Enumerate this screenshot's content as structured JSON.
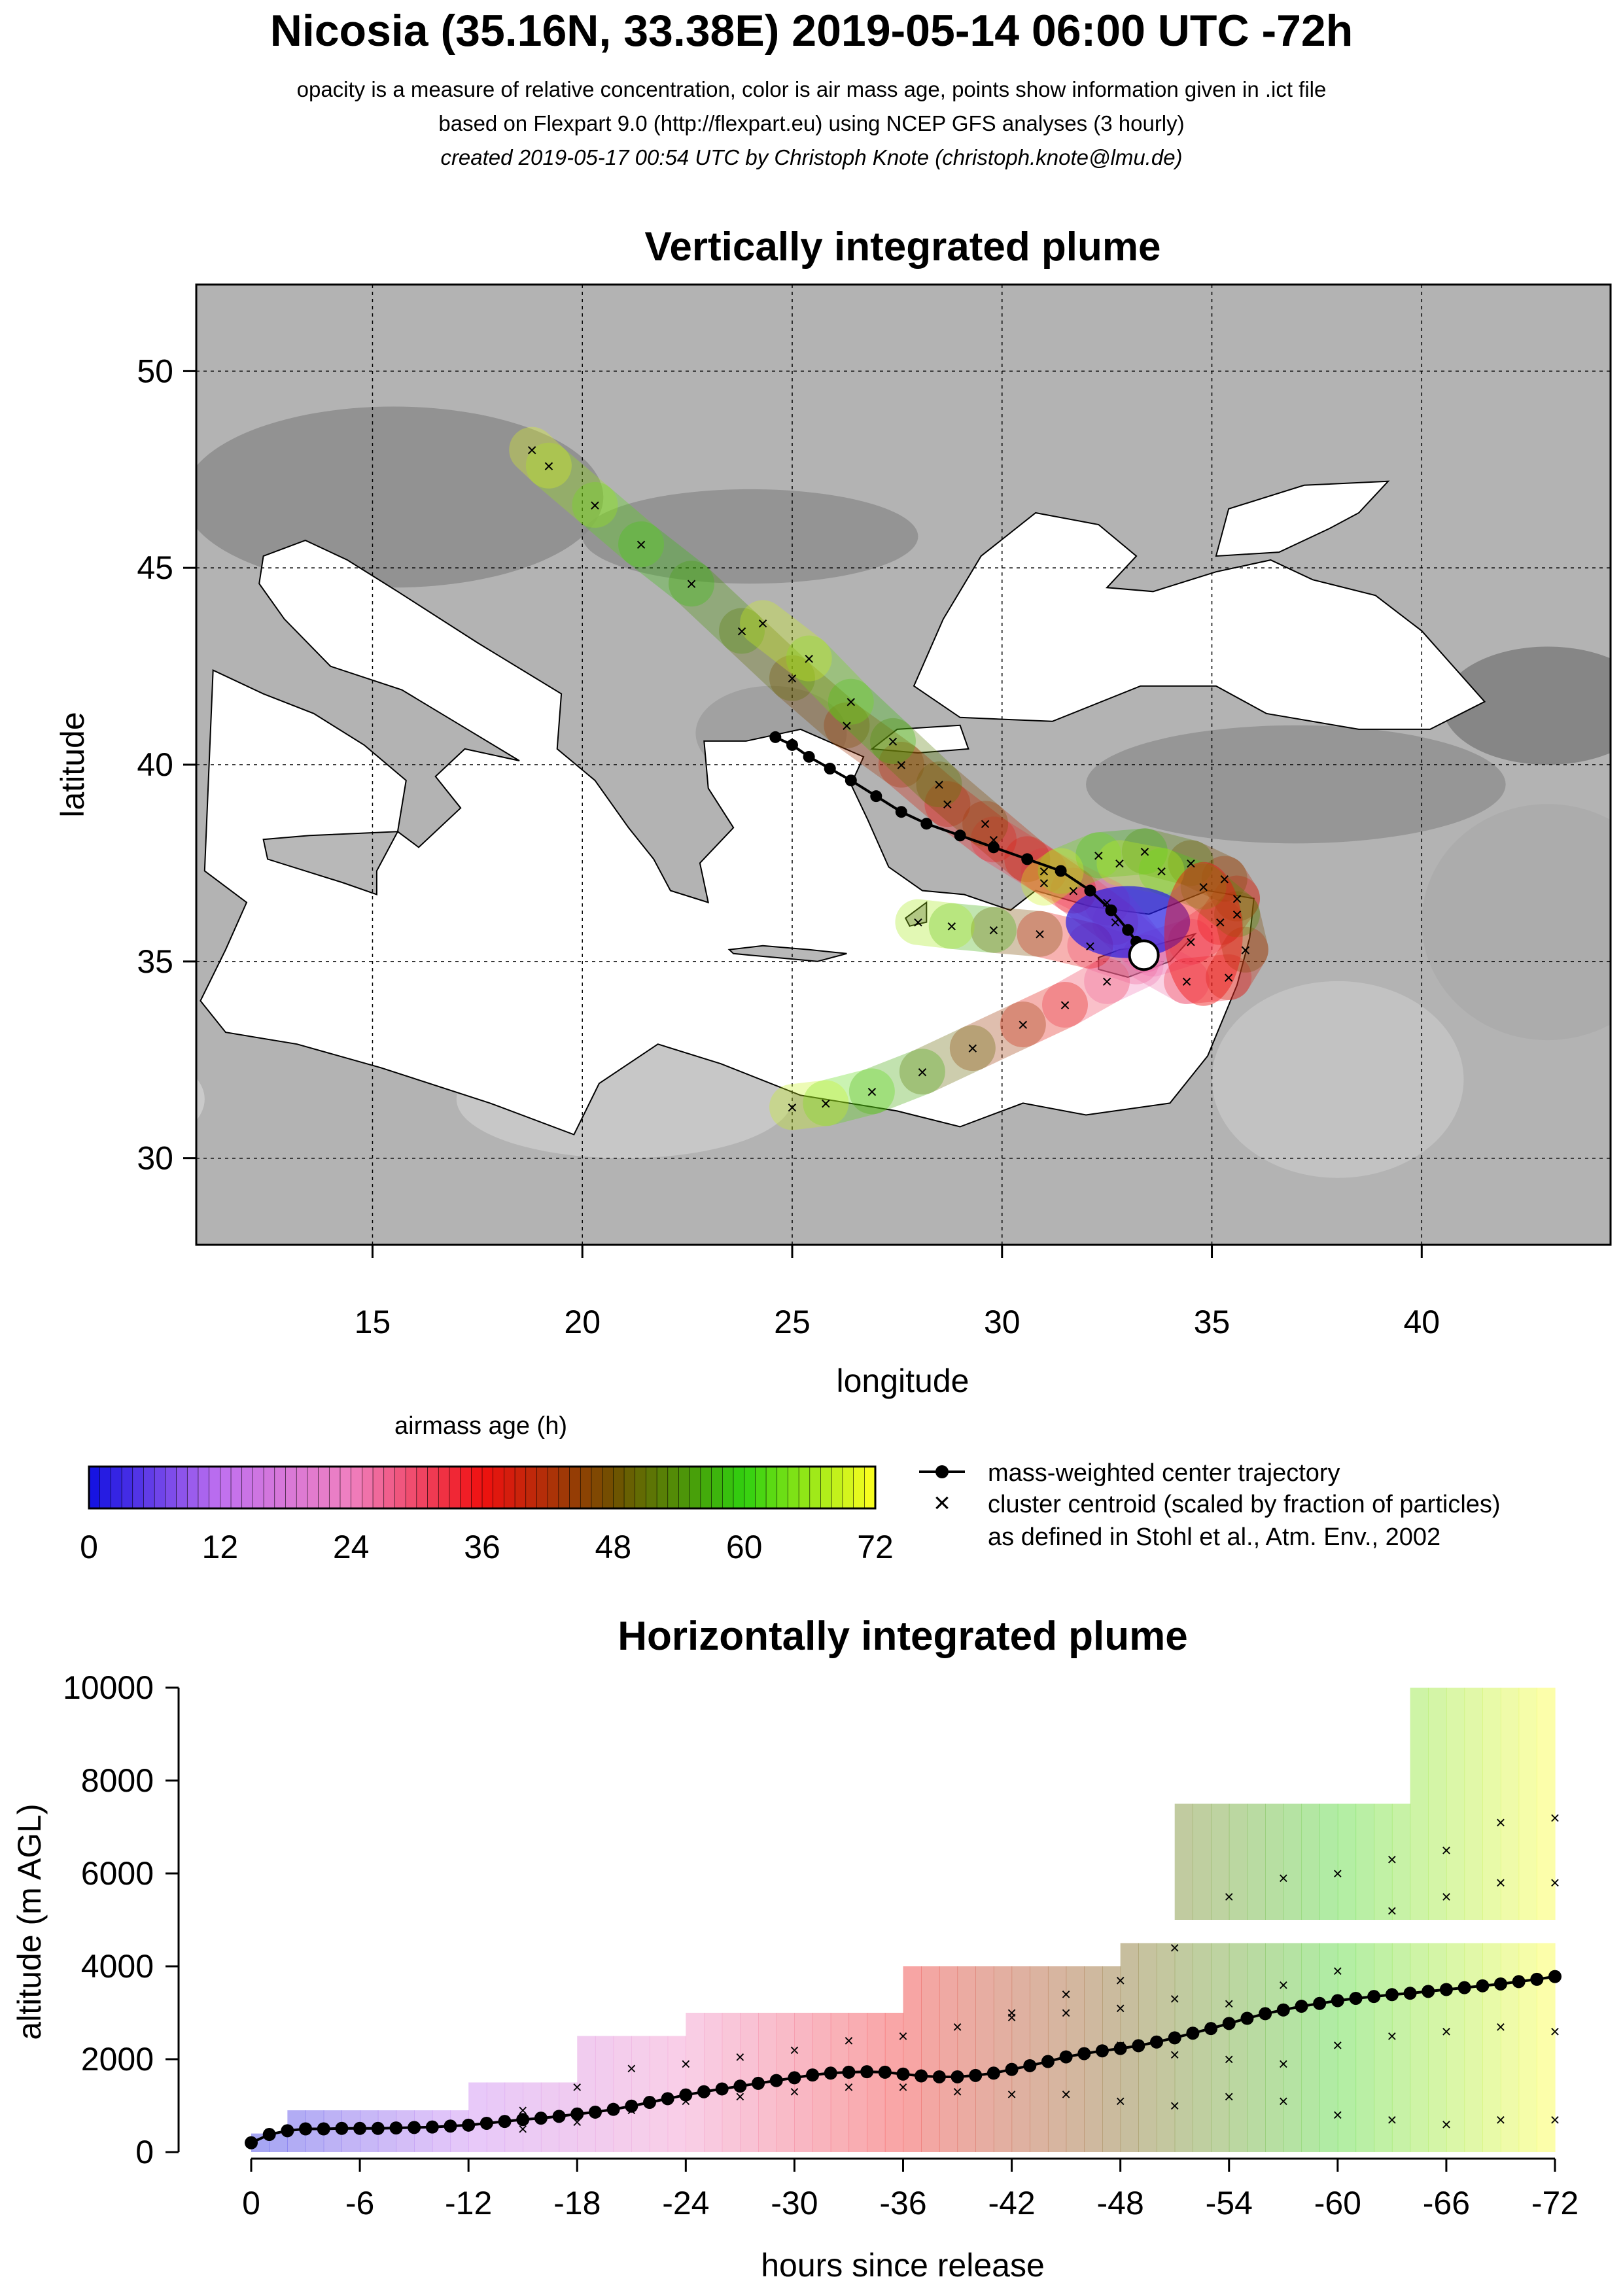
{
  "header": {
    "title": "Nicosia (35.16N, 33.38E) 2019-05-14 06:00 UTC -72h",
    "line1": "opacity is a measure of relative concentration, color is air mass age, points show information given in .ict file",
    "line2": "based on Flexpart 9.0 (http://flexpart.eu) using NCEP GFS analyses (3 hourly)",
    "line3": "created 2019-05-17 00:54 UTC by Christoph Knote (christoph.knote@lmu.de)"
  },
  "colorbar": {
    "title": "airmass age (h)",
    "ticks": [
      "0",
      "12",
      "24",
      "36",
      "48",
      "60",
      "72"
    ],
    "stops": [
      "#1010e0",
      "#c070f0",
      "#f080c0",
      "#f01010",
      "#705000",
      "#30d010",
      "#ffff20"
    ]
  },
  "legend": {
    "center": "mass-weighted center trajectory",
    "cluster": "cluster centroid (scaled by fraction of particles)",
    "cluster_note": "as defined in Stohl et al., Atm. Env., 2002"
  },
  "chart_data": [
    {
      "type": "scatter",
      "title": "Vertically integrated plume",
      "xlabel": "longitude",
      "ylabel": "latitude",
      "xlim": [
        10.8,
        44.5
      ],
      "ylim": [
        27.8,
        52.2
      ],
      "xticks": [
        15,
        20,
        25,
        30,
        35,
        40
      ],
      "yticks": [
        30,
        35,
        40,
        45,
        50
      ],
      "grid": true,
      "release_point": {
        "lon": 33.38,
        "lat": 35.16
      },
      "center_trajectory": [
        [
          33.38,
          35.16
        ],
        [
          33.2,
          35.5
        ],
        [
          33.0,
          35.8
        ],
        [
          32.6,
          36.3
        ],
        [
          32.1,
          36.8
        ],
        [
          31.4,
          37.3
        ],
        [
          30.6,
          37.6
        ],
        [
          29.8,
          37.9
        ],
        [
          29.0,
          38.2
        ],
        [
          28.2,
          38.5
        ],
        [
          27.6,
          38.8
        ],
        [
          27.0,
          39.2
        ],
        [
          26.4,
          39.6
        ],
        [
          25.9,
          39.9
        ],
        [
          25.4,
          40.2
        ],
        [
          25.0,
          40.5
        ],
        [
          24.6,
          40.7
        ]
      ],
      "cluster_tracks": [
        [
          [
            33.4,
            35.3
          ],
          [
            32.5,
            36.5
          ],
          [
            31.0,
            37.3
          ],
          [
            29.8,
            38.1
          ],
          [
            28.7,
            39.0
          ],
          [
            27.6,
            40.0
          ],
          [
            26.3,
            41.0
          ],
          [
            25.0,
            42.2
          ],
          [
            23.8,
            43.4
          ],
          [
            22.6,
            44.6
          ],
          [
            21.4,
            45.6
          ],
          [
            20.3,
            46.6
          ],
          [
            19.2,
            47.6
          ],
          [
            18.8,
            48.0
          ]
        ],
        [
          [
            33.4,
            35.3
          ],
          [
            32.7,
            36.0
          ],
          [
            31.7,
            36.8
          ],
          [
            30.6,
            37.6
          ],
          [
            29.6,
            38.5
          ],
          [
            28.5,
            39.5
          ],
          [
            27.4,
            40.6
          ],
          [
            26.4,
            41.6
          ],
          [
            25.4,
            42.7
          ],
          [
            24.3,
            43.6
          ]
        ],
        [
          [
            33.6,
            35.2
          ],
          [
            34.5,
            35.5
          ],
          [
            35.2,
            36.0
          ],
          [
            35.6,
            36.6
          ],
          [
            35.3,
            37.1
          ],
          [
            34.5,
            37.5
          ],
          [
            33.4,
            37.8
          ],
          [
            32.3,
            37.7
          ],
          [
            31.4,
            37.3
          ],
          [
            31.0,
            37.0
          ]
        ],
        [
          [
            33.4,
            35.1
          ],
          [
            34.4,
            34.5
          ],
          [
            35.4,
            34.6
          ],
          [
            35.8,
            35.3
          ],
          [
            35.6,
            36.2
          ],
          [
            34.8,
            36.9
          ],
          [
            33.8,
            37.3
          ],
          [
            32.8,
            37.5
          ]
        ],
        [
          [
            33.3,
            34.9
          ],
          [
            32.5,
            34.5
          ],
          [
            31.5,
            33.9
          ],
          [
            30.5,
            33.4
          ],
          [
            29.3,
            32.8
          ],
          [
            28.1,
            32.2
          ],
          [
            26.9,
            31.7
          ],
          [
            25.8,
            31.4
          ],
          [
            25.0,
            31.3
          ]
        ],
        [
          [
            33.2,
            35.0
          ],
          [
            32.1,
            35.4
          ],
          [
            30.9,
            35.7
          ],
          [
            29.8,
            35.8
          ],
          [
            28.8,
            35.9
          ],
          [
            28.0,
            36.0
          ]
        ]
      ]
    },
    {
      "type": "scatter",
      "title": "Horizontally integrated plume",
      "xlabel": "hours since release",
      "ylabel": "altitude (m AGL)",
      "xlim": [
        0,
        -72
      ],
      "ylim": [
        0,
        10000
      ],
      "xticks": [
        "0",
        "-6",
        "-12",
        "-18",
        "-24",
        "-30",
        "-36",
        "-42",
        "-48",
        "-54",
        "-60",
        "-66",
        "-72"
      ],
      "yticks": [
        "0",
        "2000",
        "4000",
        "6000",
        "8000",
        "10000"
      ],
      "center_trajectory": {
        "x": [
          0,
          -1,
          -2,
          -3,
          -4,
          -5,
          -6,
          -7,
          -8,
          -9,
          -10,
          -11,
          -12,
          -13,
          -14,
          -15,
          -16,
          -17,
          -18,
          -19,
          -20,
          -21,
          -22,
          -23,
          -24,
          -25,
          -26,
          -27,
          -28,
          -29,
          -30,
          -31,
          -32,
          -33,
          -34,
          -35,
          -36,
          -37,
          -38,
          -39,
          -40,
          -41,
          -42,
          -43,
          -44,
          -45,
          -46,
          -47,
          -48,
          -49,
          -50,
          -51,
          -52,
          -53,
          -54,
          -55,
          -56,
          -57,
          -58,
          -59,
          -60,
          -61,
          -62,
          -63,
          -64,
          -65,
          -66,
          -67,
          -68,
          -69,
          -70,
          -71,
          -72
        ],
        "y": [
          200,
          380,
          460,
          500,
          500,
          510,
          510,
          510,
          520,
          530,
          540,
          560,
          580,
          620,
          660,
          700,
          730,
          770,
          820,
          860,
          920,
          990,
          1070,
          1150,
          1230,
          1300,
          1360,
          1420,
          1480,
          1540,
          1600,
          1660,
          1700,
          1720,
          1730,
          1720,
          1680,
          1640,
          1620,
          1620,
          1650,
          1700,
          1780,
          1860,
          1950,
          2050,
          2120,
          2180,
          2230,
          2290,
          2370,
          2460,
          2560,
          2660,
          2770,
          2880,
          2980,
          3060,
          3140,
          3200,
          3260,
          3310,
          3350,
          3390,
          3420,
          3460,
          3500,
          3540,
          3580,
          3620,
          3670,
          3720,
          3780
        ]
      },
      "cluster_points": {
        "x": [
          -3,
          -6,
          -9,
          -12,
          -15,
          -18,
          -21,
          -24,
          -27,
          -30,
          -33,
          -36,
          -39,
          -42,
          -45,
          -48,
          -51,
          -54,
          -57,
          -60,
          -63,
          -66,
          -69,
          -72,
          -15,
          -18,
          -21,
          -24,
          -27,
          -30,
          -33,
          -36,
          -39,
          -42,
          -45,
          -48,
          -51,
          -54,
          -57,
          -60,
          -63,
          -66,
          -69,
          -72,
          -48,
          -51,
          -54,
          -57,
          -60,
          -63,
          -66,
          -69,
          -72,
          -42,
          -45,
          -48,
          -51,
          -54,
          -57,
          -60,
          -63,
          -66,
          -69,
          -72
        ],
        "y": [
          520,
          540,
          560,
          620,
          900,
          1400,
          1800,
          1900,
          2050,
          2200,
          2400,
          2500,
          2700,
          3000,
          3400,
          3700,
          4400,
          5500,
          5900,
          6000,
          6300,
          6500,
          7100,
          7200,
          500,
          650,
          900,
          1100,
          1200,
          1300,
          1400,
          1400,
          1300,
          1250,
          1250,
          1100,
          1000,
          1200,
          1100,
          800,
          700,
          600,
          700,
          700,
          2300,
          2100,
          2000,
          1900,
          2300,
          2500,
          2600,
          2700,
          2600,
          2900,
          3000,
          3100,
          3300,
          3200,
          3600,
          3900,
          5200,
          5500,
          5800,
          5800
        ]
      },
      "plume_bands": [
        {
          "h0": 0,
          "h1": -2,
          "zlo": 0,
          "zhi": 400
        },
        {
          "h0": -2,
          "h1": -12,
          "zlo": 0,
          "zhi": 900
        },
        {
          "h0": -12,
          "h1": -18,
          "zlo": 0,
          "zhi": 1500
        },
        {
          "h0": -18,
          "h1": -24,
          "zlo": 0,
          "zhi": 2500
        },
        {
          "h0": -24,
          "h1": -36,
          "zlo": 0,
          "zhi": 3000
        },
        {
          "h0": -36,
          "h1": -48,
          "zlo": 0,
          "zhi": 4000
        },
        {
          "h0": -48,
          "h1": -54,
          "zlo": 0,
          "zhi": 4500
        },
        {
          "h0": -54,
          "h1": -72,
          "zlo": 0,
          "zhi": 4500
        },
        {
          "h0": -51,
          "h1": -72,
          "zlo": 5000,
          "zhi": 7500
        },
        {
          "h0": -64,
          "h1": -72,
          "zlo": 7500,
          "zhi": 10000
        }
      ]
    }
  ]
}
